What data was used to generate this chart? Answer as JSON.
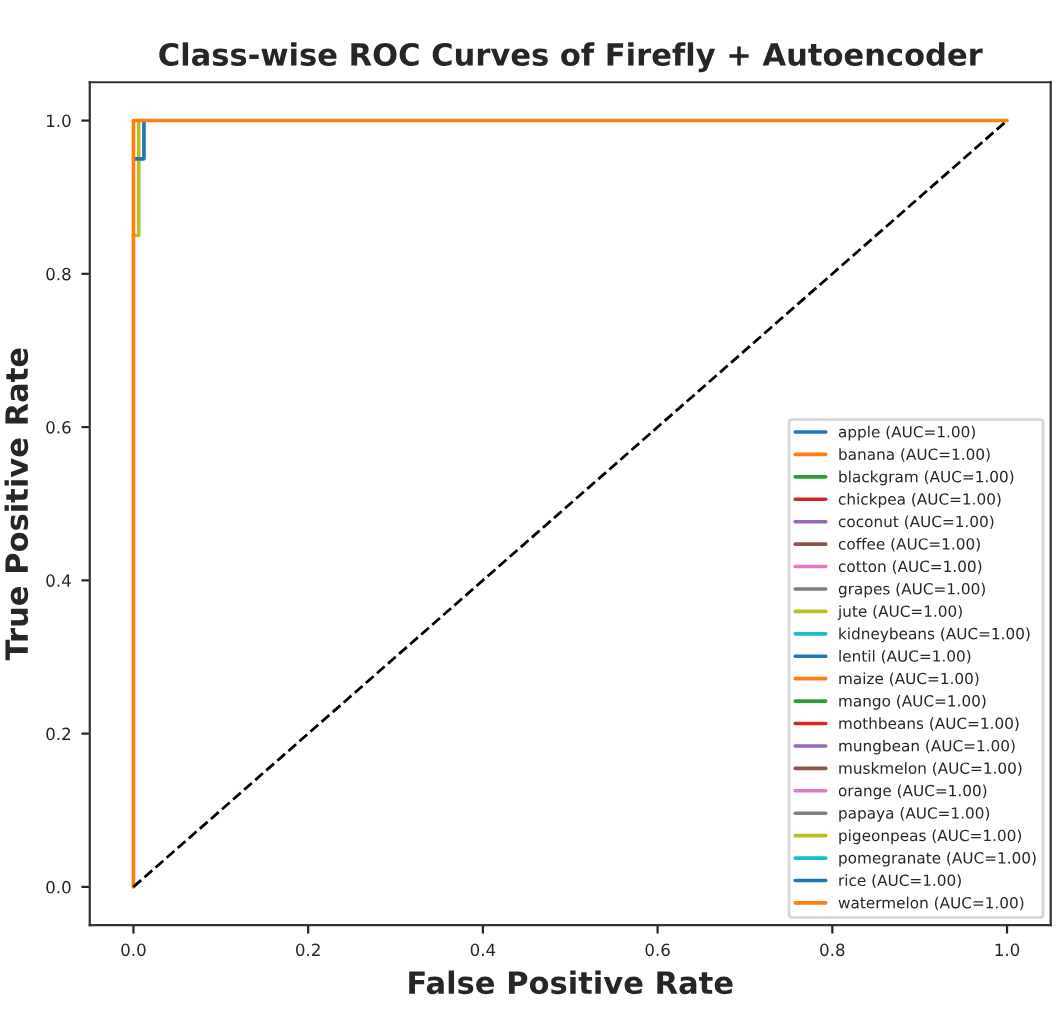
{
  "chart_data": {
    "type": "line",
    "title": "Class-wise ROC Curves of Firefly + Autoencoder",
    "xlabel": "False Positive Rate",
    "ylabel": "True Positive Rate",
    "xlim": [
      -0.05,
      1.05
    ],
    "ylim": [
      -0.05,
      1.05
    ],
    "xticks": [
      {
        "value": 0,
        "label": "0.0"
      },
      {
        "value": 0.2,
        "label": "0.2"
      },
      {
        "value": 0.4,
        "label": "0.4"
      },
      {
        "value": 0.6,
        "label": "0.6"
      },
      {
        "value": 0.8,
        "label": "0.8"
      },
      {
        "value": 1,
        "label": "1.0"
      }
    ],
    "yticks": [
      {
        "value": 0,
        "label": "0.0"
      },
      {
        "value": 0.2,
        "label": "0.2"
      },
      {
        "value": 0.4,
        "label": "0.4"
      },
      {
        "value": 0.6,
        "label": "0.6"
      },
      {
        "value": 0.8,
        "label": "0.8"
      },
      {
        "value": 1,
        "label": "1.0"
      }
    ],
    "legend": "lower right",
    "grid": false,
    "series": [
      {
        "name": "apple (AUC=1.00)",
        "color": "#1f77b4"
      },
      {
        "name": "banana (AUC=1.00)",
        "color": "#ff7f0e"
      },
      {
        "name": "blackgram (AUC=1.00)",
        "color": "#2ca02c"
      },
      {
        "name": "chickpea (AUC=1.00)",
        "color": "#d62728"
      },
      {
        "name": "coconut (AUC=1.00)",
        "color": "#9467bd"
      },
      {
        "name": "coffee (AUC=1.00)",
        "color": "#8c564b"
      },
      {
        "name": "cotton (AUC=1.00)",
        "color": "#e377c2"
      },
      {
        "name": "grapes (AUC=1.00)",
        "color": "#7f7f7f"
      },
      {
        "name": "jute (AUC=1.00)",
        "color": "#bcbd22",
        "x": [
          0,
          0.006,
          0.006
        ],
        "values": [
          0.85,
          0.85,
          1
        ]
      },
      {
        "name": "kidneybeans (AUC=1.00)",
        "color": "#17becf"
      },
      {
        "name": "lentil (AUC=1.00)",
        "color": "#1f77b4",
        "x": [
          0,
          0.012,
          0.012
        ],
        "values": [
          0.95,
          0.95,
          1
        ]
      },
      {
        "name": "maize (AUC=1.00)",
        "color": "#ff7f0e"
      },
      {
        "name": "mango (AUC=1.00)",
        "color": "#2ca02c"
      },
      {
        "name": "mothbeans (AUC=1.00)",
        "color": "#d62728"
      },
      {
        "name": "mungbean (AUC=1.00)",
        "color": "#9467bd"
      },
      {
        "name": "muskmelon (AUC=1.00)",
        "color": "#8c564b"
      },
      {
        "name": "orange (AUC=1.00)",
        "color": "#e377c2"
      },
      {
        "name": "papaya (AUC=1.00)",
        "color": "#7f7f7f"
      },
      {
        "name": "pigeonpeas (AUC=1.00)",
        "color": "#bcbd22"
      },
      {
        "name": "pomegranate (AUC=1.00)",
        "color": "#17becf"
      },
      {
        "name": "rice (AUC=1.00)",
        "color": "#1f77b4"
      },
      {
        "name": "watermelon (AUC=1.00)",
        "color": "#ff7f0e",
        "x": [
          0,
          0,
          1
        ],
        "values": [
          0,
          1,
          1
        ]
      },
      {
        "color": "#000000",
        "line_style": "dashed",
        "x": [
          0,
          1
        ],
        "values": [
          0,
          1
        ]
      }
    ]
  }
}
